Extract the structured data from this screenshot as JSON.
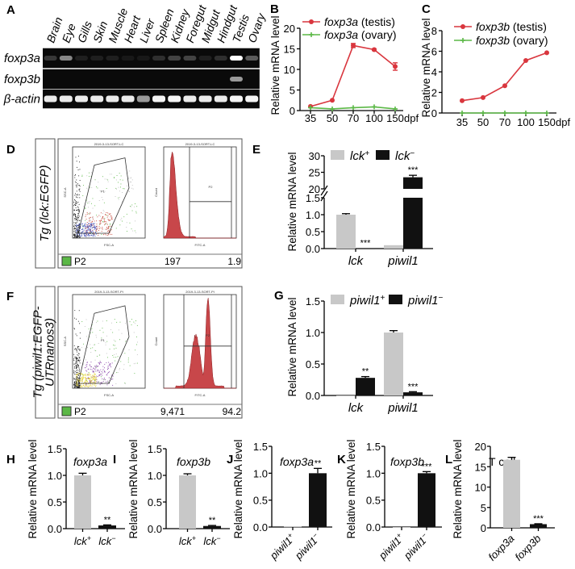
{
  "gel": {
    "label": "A",
    "lanes": [
      "Brain",
      "Eye",
      "Gills",
      "Skin",
      "Muscle",
      "Heart",
      "Liver",
      "Spleen",
      "Kidney",
      "Foregut",
      "Midgut",
      "Hindgut",
      "Testis",
      "Ovary"
    ],
    "rows": [
      {
        "name": "foxp3a",
        "bands": [
          0.25,
          0.55,
          0.1,
          0.1,
          0.1,
          0.05,
          0.05,
          0.2,
          0.3,
          0.3,
          0.1,
          0.2,
          1.0,
          0.4
        ]
      },
      {
        "name": "foxp3b",
        "bands": [
          0,
          0,
          0,
          0,
          0,
          0,
          0,
          0,
          0,
          0,
          0,
          0,
          0.6,
          0
        ]
      },
      {
        "name": "β-actin",
        "bands": [
          0.9,
          0.9,
          0.9,
          0.9,
          0.9,
          0.9,
          0.6,
          0.95,
          0.95,
          0.9,
          0.9,
          0.9,
          0.95,
          0.95
        ]
      }
    ]
  },
  "facs": [
    {
      "label": "D",
      "sample_lines": [
        "Tg (lck:EGFP)"
      ],
      "scatter_title": "2019-3-13-SORT-LC",
      "hist_title": "2019-3-13-SORT-LC",
      "scatter_gate": "P1",
      "hist_gate": "P2",
      "scatter_x": "FSC-A",
      "scatter_y": "SSC-A",
      "hist_x": "FITC-A",
      "hist_y": "Count",
      "population": "P2",
      "events": "197",
      "percent": "1.9",
      "population_color": "#5bb846",
      "histogram": "low"
    },
    {
      "label": "F",
      "sample_lines": [
        "Tg (piwil1:EGFP-",
        "UTRnanos3)"
      ],
      "scatter_title": "2019-3-13-SORT-PI",
      "hist_title": "2019-3-13-SORT-PI",
      "scatter_gate": "P1",
      "hist_gate": "P2",
      "scatter_x": "FSC-A",
      "scatter_y": "SSC-A",
      "hist_x": "FITC-A",
      "hist_y": "Count",
      "population": "P2",
      "events": "9,471",
      "percent": "94.2",
      "population_color": "#5bb846",
      "histogram": "high"
    }
  ],
  "chart_data": [
    {
      "panel": "B",
      "type": "line",
      "ylabel": "Relative mRNA level",
      "x": [
        35,
        50,
        70,
        100,
        150
      ],
      "xunit": "dpf",
      "ylim": [
        0,
        20
      ],
      "yticks": [
        "0",
        "5",
        "10",
        "15",
        "20"
      ],
      "yvals": [
        0,
        5,
        10,
        15,
        20
      ],
      "series": [
        {
          "gene": "foxp3a",
          "tissue": " (testis)",
          "color": "#d9363e",
          "values": [
            1.0,
            2.5,
            15.8,
            14.8,
            10.7
          ],
          "errors": [
            0.1,
            0.1,
            0.5,
            0.2,
            0.9
          ]
        },
        {
          "gene": "foxp3a",
          "tissue": " (ovary)",
          "color": "#5bb846",
          "values": [
            0.7,
            0.4,
            0.7,
            0.9,
            0.4
          ],
          "errors": [
            0,
            0,
            0,
            0,
            0
          ]
        }
      ]
    },
    {
      "panel": "C",
      "type": "line",
      "ylabel": "Relative mRNA level",
      "x": [
        35,
        50,
        70,
        100,
        150
      ],
      "xunit": "dpf",
      "ylim": [
        0,
        8
      ],
      "yticks": [
        "0",
        "2",
        "4",
        "6",
        "8"
      ],
      "yvals": [
        0,
        2,
        4,
        6,
        8
      ],
      "series": [
        {
          "gene": "foxp3b",
          "tissue": " (testis)",
          "color": "#d9363e",
          "values": [
            1.2,
            1.5,
            2.65,
            5.1,
            5.85
          ],
          "errors": [
            0,
            0,
            0,
            0,
            0
          ]
        },
        {
          "gene": "foxp3b",
          "tissue": " (ovary)",
          "color": "#5bb846",
          "values": [
            0,
            0,
            0,
            0,
            0
          ],
          "errors": [
            0,
            0,
            0,
            0,
            0
          ]
        }
      ]
    },
    {
      "panel": "E",
      "type": "bar",
      "ylabel": "Relative mRNA level",
      "categories": [
        "lck",
        "piwil1"
      ],
      "yaxis_break": [
        1.5,
        20
      ],
      "yticks": [
        "0.0",
        "0.5",
        "1.0",
        "1.5",
        "20",
        "25",
        "30"
      ],
      "yvals": [
        0,
        0.5,
        1.0,
        1.5,
        20,
        25,
        30
      ],
      "series": [
        {
          "gene": "lck",
          "sign": "+",
          "color": "#c8c8c8",
          "values": [
            1.0,
            0.1
          ],
          "errors": [
            0.03,
            0
          ],
          "annotations": [
            "",
            ""
          ]
        },
        {
          "gene": "lck",
          "sign": "−",
          "color": "#111111",
          "values": [
            0.01,
            23.5
          ],
          "errors": [
            0,
            0.6
          ],
          "annotations": [
            "***",
            "***"
          ]
        }
      ]
    },
    {
      "panel": "G",
      "type": "bar",
      "ylabel": "Relative mRNA level",
      "categories": [
        "lck",
        "piwil1"
      ],
      "ylim": [
        0,
        1.5
      ],
      "yticks": [
        "0.0",
        "0.5",
        "1.0",
        "1.5"
      ],
      "yvals": [
        0,
        0.5,
        1.0,
        1.5
      ],
      "series": [
        {
          "gene": "piwil1",
          "sign": "+",
          "color": "#c8c8c8",
          "values": [
            0,
            1.0
          ],
          "errors": [
            0,
            0.03
          ],
          "annotations": [
            "",
            ""
          ]
        },
        {
          "gene": "piwil1",
          "sign": "−",
          "color": "#111111",
          "values": [
            0.28,
            0.05
          ],
          "errors": [
            0.02,
            0.01
          ],
          "annotations": [
            "**",
            "***"
          ]
        }
      ]
    },
    {
      "panel": "H",
      "type": "bar",
      "title": "foxp3a",
      "ylabel": "Relative mRNA level",
      "categories": [
        {
          "gene": "lck",
          "sign": "+"
        },
        {
          "gene": "lck",
          "sign": "−"
        }
      ],
      "values": [
        1.0,
        0.06
      ],
      "errors": [
        0.04,
        0.01
      ],
      "colors": [
        "#c8c8c8",
        "#111111"
      ],
      "annotations": [
        "",
        "**"
      ],
      "ylim": [
        0,
        1.5
      ],
      "yticks": [
        "0.0",
        "0.5",
        "1.0",
        "1.5"
      ],
      "yvals": [
        0,
        0.5,
        1.0,
        1.5
      ]
    },
    {
      "panel": "I",
      "type": "bar",
      "title": "foxp3b",
      "ylabel": "Relative mRNA level",
      "categories": [
        {
          "gene": "lck",
          "sign": "+"
        },
        {
          "gene": "lck",
          "sign": "−"
        }
      ],
      "values": [
        1.0,
        0.05
      ],
      "errors": [
        0.03,
        0.01
      ],
      "colors": [
        "#c8c8c8",
        "#111111"
      ],
      "annotations": [
        "",
        "**"
      ],
      "ylim": [
        0,
        1.5
      ],
      "yticks": [
        "0.0",
        "0.5",
        "1.0",
        "1.5"
      ],
      "yvals": [
        0,
        0.5,
        1.0,
        1.5
      ]
    },
    {
      "panel": "J",
      "type": "bar",
      "title": "foxp3a",
      "ylabel": "Relative mRNA level",
      "categories": [
        {
          "gene": "piwil1",
          "sign": "+"
        },
        {
          "gene": "piwil1",
          "sign": "−"
        }
      ],
      "values": [
        0.01,
        1.0
      ],
      "errors": [
        0,
        0.09
      ],
      "colors": [
        "#c8c8c8",
        "#111111"
      ],
      "annotations": [
        "",
        "**"
      ],
      "ylim": [
        0,
        1.5
      ],
      "yticks": [
        "0.0",
        "0.5",
        "1.0",
        "1.5"
      ],
      "yvals": [
        0,
        0.5,
        1.0,
        1.5
      ]
    },
    {
      "panel": "K",
      "type": "bar",
      "title": "foxp3b",
      "ylabel": "Relative mRNA level",
      "categories": [
        {
          "gene": "piwil1",
          "sign": "+"
        },
        {
          "gene": "piwil1",
          "sign": "−"
        }
      ],
      "values": [
        0,
        1.0
      ],
      "errors": [
        0,
        0.03
      ],
      "colors": [
        "#c8c8c8",
        "#111111"
      ],
      "annotations": [
        "",
        "***"
      ],
      "ylim": [
        0,
        1.5
      ],
      "yticks": [
        "0.0",
        "0.5",
        "1.0",
        "1.5"
      ],
      "yvals": [
        0,
        0.5,
        1.0,
        1.5
      ]
    },
    {
      "panel": "L",
      "type": "bar",
      "title": "T cell",
      "ylabel": "Relative mRNA level",
      "categories": [
        {
          "gene": "foxp3a",
          "sign": ""
        },
        {
          "gene": "foxp3b",
          "sign": ""
        }
      ],
      "values": [
        16.7,
        0.9
      ],
      "errors": [
        0.6,
        0.1
      ],
      "colors": [
        "#c8c8c8",
        "#111111"
      ],
      "annotations": [
        "",
        "***"
      ],
      "ylim": [
        0,
        20
      ],
      "yticks": [
        "0",
        "5",
        "10",
        "15",
        "20"
      ],
      "yvals": [
        0,
        5,
        10,
        15,
        20
      ]
    }
  ]
}
